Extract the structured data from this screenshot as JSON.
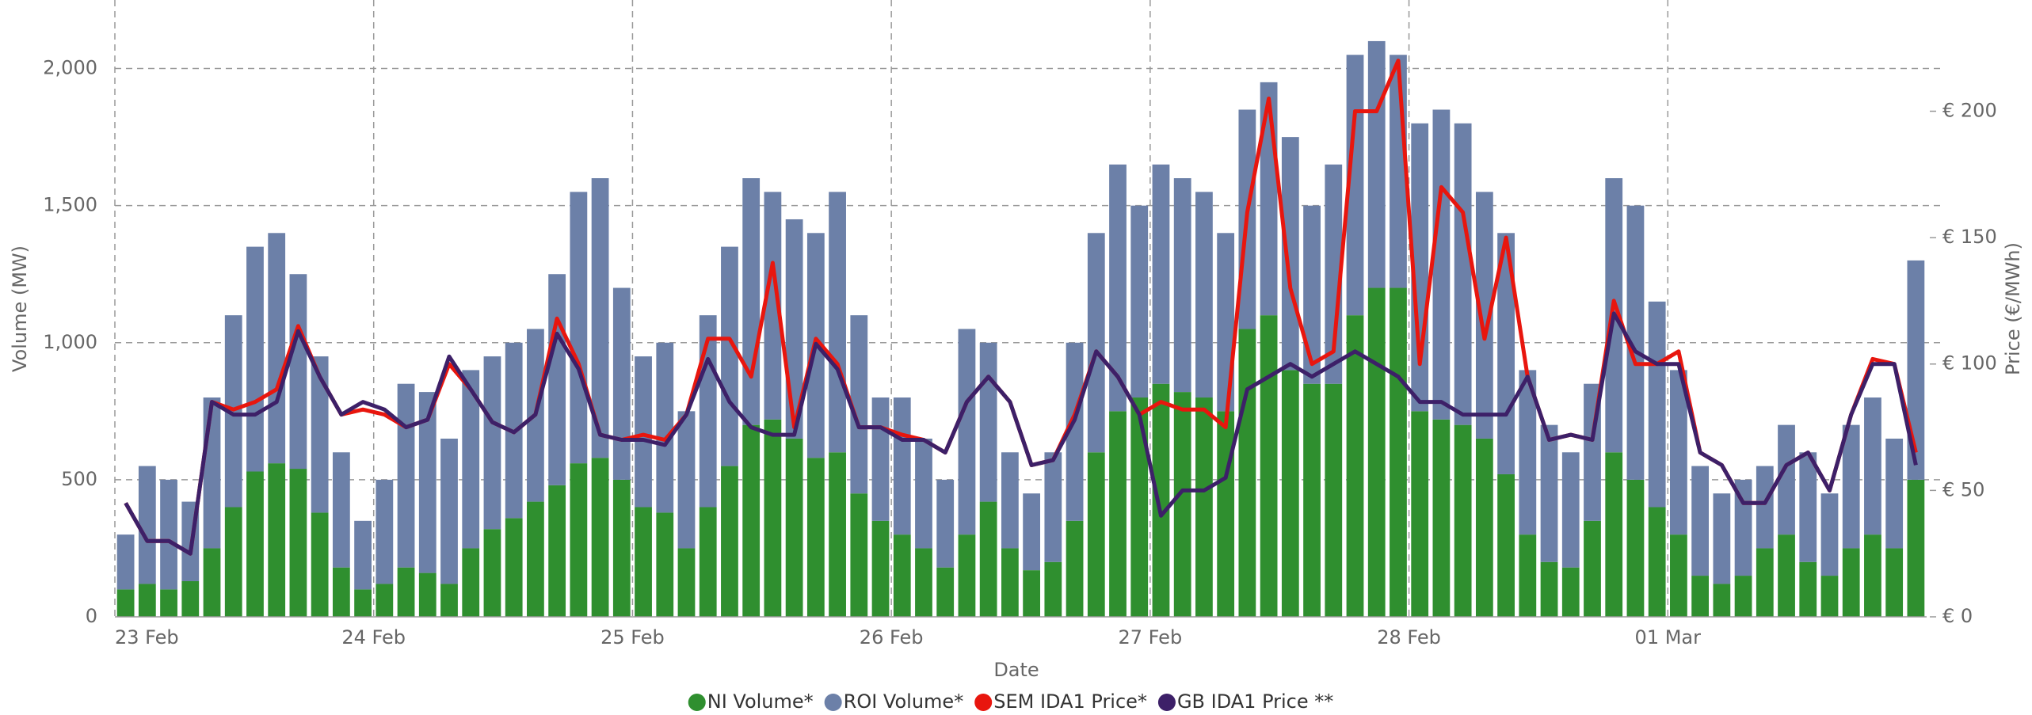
{
  "chart_data": {
    "type": "stacked-bar-line",
    "x_label": "Date",
    "y_label": "Volume (MW)",
    "y2_label": "Price (€/MWh)",
    "categories": [
      "23 Feb",
      null,
      null,
      null,
      null,
      null,
      null,
      null,
      null,
      null,
      null,
      null,
      "24 Feb",
      null,
      null,
      null,
      null,
      null,
      null,
      null,
      null,
      null,
      null,
      null,
      "25 Feb",
      null,
      null,
      null,
      null,
      null,
      null,
      null,
      null,
      null,
      null,
      null,
      "26 Feb",
      null,
      null,
      null,
      null,
      null,
      null,
      null,
      null,
      null,
      null,
      null,
      "27 Feb",
      null,
      null,
      null,
      null,
      null,
      null,
      null,
      null,
      null,
      null,
      null,
      "28 Feb",
      null,
      null,
      null,
      null,
      null,
      null,
      null,
      null,
      null,
      null,
      null,
      "01 Mar",
      null,
      null,
      null,
      null,
      null,
      null,
      null,
      null,
      null,
      null,
      null
    ],
    "ylim": [
      0,
      2250
    ],
    "yticks": [
      0,
      500,
      {
        "value": 1000,
        "label": "1,000"
      },
      {
        "value": 1500,
        "label": "1,500"
      },
      {
        "value": 2000,
        "label": "2,000"
      }
    ],
    "y2lim": [
      0,
      244
    ],
    "y2ticks": [
      {
        "value": 0,
        "label": "€ 0"
      },
      {
        "value": 50,
        "label": "€ 50"
      },
      {
        "value": 100,
        "label": "€ 100"
      },
      {
        "value": 150,
        "label": "€ 150"
      },
      {
        "value": 200,
        "label": "€ 200"
      }
    ],
    "grid": true,
    "legend": "bottom",
    "series": [
      {
        "name": "NI Volume*",
        "kind": "bar",
        "color": "#2f8f2f",
        "values": [
          100,
          120,
          100,
          130,
          250,
          400,
          530,
          560,
          540,
          380,
          180,
          100,
          120,
          180,
          160,
          120,
          250,
          320,
          360,
          420,
          480,
          560,
          580,
          500,
          400,
          380,
          250,
          400,
          550,
          700,
          720,
          650,
          580,
          600,
          450,
          350,
          300,
          250,
          180,
          300,
          420,
          250,
          170,
          200,
          350,
          600,
          750,
          800,
          850,
          820,
          800,
          750,
          1050,
          1100,
          900,
          850,
          850,
          1100,
          1200,
          1200,
          750,
          720,
          700,
          650,
          520,
          300,
          200,
          180,
          350,
          600,
          500,
          400,
          300,
          150,
          120,
          150,
          250,
          300,
          200,
          150,
          250,
          300,
          250,
          500
        ]
      },
      {
        "name": "ROI Volume*",
        "kind": "bar",
        "color": "#6c80a8",
        "values": [
          200,
          430,
          400,
          290,
          550,
          700,
          820,
          840,
          710,
          570,
          420,
          250,
          380,
          670,
          660,
          530,
          650,
          630,
          640,
          630,
          770,
          990,
          1020,
          700,
          550,
          620,
          500,
          700,
          800,
          900,
          830,
          800,
          820,
          950,
          650,
          450,
          500,
          400,
          320,
          750,
          580,
          350,
          280,
          400,
          650,
          800,
          900,
          700,
          800,
          780,
          750,
          650,
          800,
          850,
          850,
          650,
          800,
          950,
          900,
          850,
          1050,
          1130,
          1100,
          900,
          880,
          600,
          500,
          420,
          500,
          1000,
          1000,
          750,
          600,
          400,
          330,
          350,
          300,
          400,
          400,
          300,
          450,
          500,
          400,
          800
        ]
      },
      {
        "name": "SEM IDA1 Price*",
        "kind": "line",
        "axis": "y2",
        "color": "#e8160e",
        "values": [
          45,
          30,
          30,
          25,
          85,
          82,
          85,
          90,
          115,
          95,
          80,
          82,
          80,
          75,
          78,
          100,
          90,
          77,
          73,
          80,
          118,
          100,
          72,
          70,
          72,
          70,
          80,
          110,
          110,
          95,
          140,
          75,
          110,
          100,
          75,
          75,
          72,
          70,
          65,
          85,
          95,
          85,
          60,
          62,
          80,
          105,
          95,
          80,
          85,
          82,
          82,
          75,
          160,
          205,
          130,
          100,
          105,
          200,
          200,
          220,
          100,
          170,
          160,
          110,
          150,
          95,
          70,
          72,
          70,
          125,
          100,
          100,
          105,
          65,
          60,
          45,
          45,
          60,
          65,
          50,
          80,
          102,
          100,
          65
        ]
      },
      {
        "name": "GB IDA1 Price **",
        "kind": "line",
        "axis": "y2",
        "color": "#3d2068",
        "values": [
          45,
          30,
          30,
          25,
          85,
          80,
          80,
          85,
          113,
          95,
          80,
          85,
          82,
          75,
          78,
          103,
          90,
          77,
          73,
          80,
          112,
          98,
          72,
          70,
          70,
          68,
          80,
          102,
          85,
          75,
          72,
          72,
          108,
          98,
          75,
          75,
          70,
          70,
          65,
          85,
          95,
          85,
          60,
          62,
          78,
          105,
          95,
          80,
          40,
          50,
          50,
          55,
          90,
          95,
          100,
          95,
          100,
          105,
          100,
          95,
          85,
          85,
          80,
          80,
          80,
          95,
          70,
          72,
          70,
          120,
          105,
          100,
          100,
          65,
          60,
          45,
          45,
          60,
          65,
          50,
          80,
          100,
          100,
          60
        ]
      }
    ]
  }
}
